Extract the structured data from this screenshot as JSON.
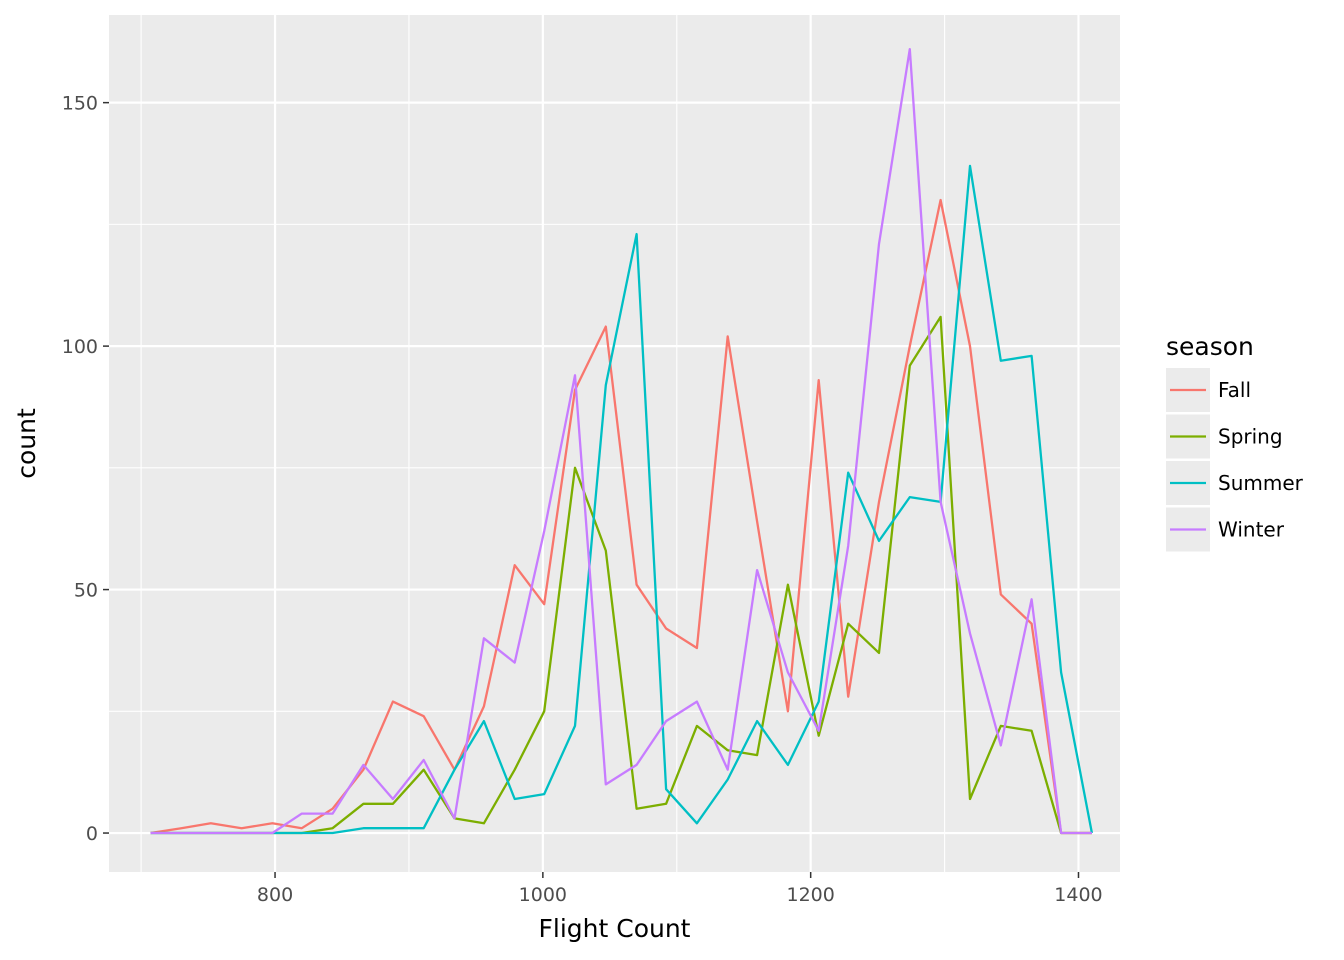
{
  "chart_data": {
    "type": "line",
    "xlabel": "Flight Count",
    "ylabel": "count",
    "xlim": [
      676,
      1431
    ],
    "ylim": [
      -8,
      168
    ],
    "x_ticks": [
      800,
      1000,
      1200,
      1400
    ],
    "x_tick_labels": [
      "800",
      "1000",
      "1200",
      "1400"
    ],
    "x_minor_ticks": [
      700,
      900,
      1100,
      1300
    ],
    "y_ticks": [
      0,
      50,
      100,
      150
    ],
    "y_tick_labels": [
      "0",
      "50",
      "100",
      "150"
    ],
    "y_minor_ticks": [
      25,
      75,
      125
    ],
    "grid": true,
    "panel_background": "#ebebeb",
    "legend": {
      "title": "season",
      "placement": "right"
    },
    "x": [
      707,
      730,
      752,
      775,
      798,
      820,
      843,
      866,
      888,
      911,
      934,
      956,
      979,
      1001,
      1024,
      1047,
      1070,
      1092,
      1115,
      1138,
      1160,
      1183,
      1206,
      1228,
      1251,
      1274,
      1297,
      1319,
      1342,
      1365,
      1387,
      1410
    ],
    "series": [
      {
        "name": "Fall",
        "color": "#F8766D",
        "values": [
          0,
          1,
          2,
          1,
          2,
          1,
          5,
          13,
          27,
          24,
          13,
          26,
          55,
          47,
          91,
          104,
          51,
          42,
          38,
          102,
          64,
          25,
          93,
          28,
          68,
          100,
          130,
          100,
          49,
          43,
          0,
          0
        ]
      },
      {
        "name": "Spring",
        "color": "#7CAE00",
        "values": [
          0,
          0,
          0,
          0,
          0,
          0,
          1,
          6,
          6,
          13,
          3,
          2,
          13,
          25,
          75,
          58,
          5,
          6,
          22,
          17,
          16,
          51,
          20,
          43,
          37,
          96,
          106,
          7,
          22,
          21,
          0,
          0
        ]
      },
      {
        "name": "Summer",
        "color": "#00BFC4",
        "values": [
          0,
          0,
          0,
          0,
          0,
          0,
          0,
          1,
          1,
          1,
          13,
          23,
          7,
          8,
          22,
          92,
          123,
          9,
          2,
          11,
          23,
          14,
          27,
          74,
          60,
          69,
          68,
          137,
          97,
          98,
          33,
          0
        ]
      },
      {
        "name": "Winter",
        "color": "#C77CFF",
        "values": [
          0,
          0,
          0,
          0,
          0,
          4,
          4,
          14,
          7,
          15,
          3,
          40,
          35,
          62,
          94,
          10,
          14,
          23,
          27,
          13,
          54,
          33,
          21,
          59,
          121,
          161,
          68,
          41,
          18,
          48,
          0,
          0
        ]
      }
    ]
  }
}
